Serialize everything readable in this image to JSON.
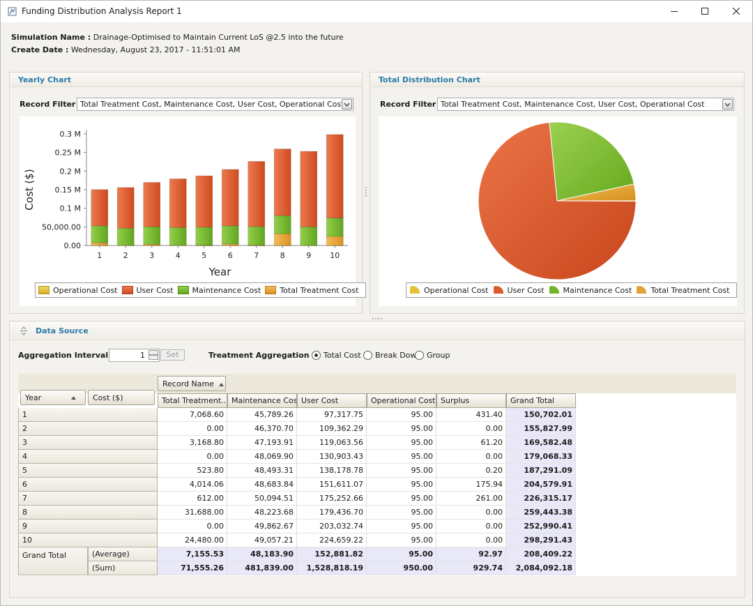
{
  "window": {
    "title": "Funding Distribution Analysis Report 1",
    "minimize_icon": "minimize-icon",
    "maximize_icon": "maximize-icon",
    "close_icon": "close-icon"
  },
  "meta": {
    "simulation_label": "Simulation Name :",
    "simulation_value": "Drainage-Optimised to Maintain Current LoS @2.5 into the future",
    "date_label": "Create Date :",
    "date_value": "Wednesday, August 23, 2017 - 11:51:01 AM"
  },
  "yearly_panel": {
    "title": "Yearly Chart",
    "filter_label": "Record Filter :",
    "filter_value": "Total Treatment Cost, Maintenance Cost, User Cost, Operational Cost"
  },
  "total_panel": {
    "title": "Total Distribution Chart",
    "filter_label": "Record Filter :",
    "filter_value": "Total Treatment Cost, Maintenance Cost, User Cost, Operational Cost"
  },
  "colors": {
    "operational": "#e3c23a",
    "user": "#dc5a2e",
    "maintenance": "#72b52a",
    "treatment": "#e3a23a"
  },
  "chart_data": [
    {
      "type": "bar",
      "stacked": true,
      "categories": [
        "1",
        "2",
        "3",
        "4",
        "5",
        "6",
        "7",
        "8",
        "9",
        "10"
      ],
      "series": [
        {
          "name": "Total Treatment Cost",
          "values": [
            7068.6,
            0.0,
            3168.8,
            0.0,
            523.8,
            4014.06,
            612.0,
            31688.0,
            0.0,
            24480.0
          ]
        },
        {
          "name": "Maintenance Cost",
          "values": [
            45789.26,
            46370.7,
            47193.91,
            48069.9,
            48493.31,
            48683.84,
            50094.51,
            48223.68,
            49862.67,
            49057.21
          ]
        },
        {
          "name": "User Cost",
          "values": [
            97317.75,
            109362.29,
            119063.56,
            130903.43,
            138178.78,
            151611.07,
            175252.66,
            179436.7,
            203032.74,
            224659.22
          ]
        },
        {
          "name": "Operational Cost",
          "values": [
            95.0,
            95.0,
            95.0,
            95.0,
            95.0,
            95.0,
            95.0,
            95.0,
            95.0,
            95.0
          ]
        }
      ],
      "xlabel": "Year",
      "ylabel": "Cost ($)",
      "ylim": [
        0,
        300000
      ],
      "yticks": [
        "0.00",
        "50,000.00",
        "0.1 M",
        "0.15 M",
        "0.2 M",
        "0.25 M",
        "0.3 M"
      ],
      "legend": [
        "Operational Cost",
        "User Cost",
        "Maintenance Cost",
        "Total Treatment Cost"
      ],
      "legend_position": "bottom"
    },
    {
      "type": "pie",
      "labels": [
        "Total Treatment Cost",
        "Maintenance Cost",
        "User Cost",
        "Operational Cost"
      ],
      "values": [
        71555.26,
        481839.0,
        1528818.19,
        950.0
      ],
      "legend": [
        "Operational Cost",
        "User Cost",
        "Maintenance Cost",
        "Total Treatment Cost"
      ],
      "legend_position": "bottom"
    }
  ],
  "data_source": {
    "title": "Data Source",
    "aggregation_label": "Aggregation Interval :",
    "aggregation_value": "1",
    "set_label": "Set",
    "treatment_label": "Treatment Aggregation :",
    "radio_total": "Total Cost",
    "radio_breakdown": "Break Down",
    "radio_group": "Group",
    "header_year": "Year",
    "header_cost": "Cost ($)",
    "header_record": "Record Name",
    "columns": [
      "Total Treatment...",
      "Maintenance Cost",
      "User Cost",
      "Operational Cost",
      "Surplus",
      "Grand Total"
    ],
    "rows": [
      {
        "year": "1",
        "vals": [
          "7,068.60",
          "45,789.26",
          "97,317.75",
          "95.00",
          "431.40",
          "150,702.01"
        ]
      },
      {
        "year": "2",
        "vals": [
          "0.00",
          "46,370.70",
          "109,362.29",
          "95.00",
          "0.00",
          "155,827.99"
        ]
      },
      {
        "year": "3",
        "vals": [
          "3,168.80",
          "47,193.91",
          "119,063.56",
          "95.00",
          "61.20",
          "169,582.48"
        ]
      },
      {
        "year": "4",
        "vals": [
          "0.00",
          "48,069.90",
          "130,903.43",
          "95.00",
          "0.00",
          "179,068.33"
        ]
      },
      {
        "year": "5",
        "vals": [
          "523.80",
          "48,493.31",
          "138,178.78",
          "95.00",
          "0.20",
          "187,291.09"
        ]
      },
      {
        "year": "6",
        "vals": [
          "4,014.06",
          "48,683.84",
          "151,611.07",
          "95.00",
          "175.94",
          "204,579.91"
        ]
      },
      {
        "year": "7",
        "vals": [
          "612.00",
          "50,094.51",
          "175,252.66",
          "95.00",
          "261.00",
          "226,315.17"
        ]
      },
      {
        "year": "8",
        "vals": [
          "31,688.00",
          "48,223.68",
          "179,436.70",
          "95.00",
          "0.00",
          "259,443.38"
        ]
      },
      {
        "year": "9",
        "vals": [
          "0.00",
          "49,862.67",
          "203,032.74",
          "95.00",
          "0.00",
          "252,990.41"
        ]
      },
      {
        "year": "10",
        "vals": [
          "24,480.00",
          "49,057.21",
          "224,659.22",
          "95.00",
          "0.00",
          "298,291.43"
        ]
      }
    ],
    "grand_total_label": "Grand Total",
    "avg_label": "(Average)",
    "sum_label": "(Sum)",
    "avg_vals": [
      "7,155.53",
      "48,183.90",
      "152,881.82",
      "95.00",
      "92.97",
      "208,409.22"
    ],
    "sum_vals": [
      "71,555.26",
      "481,839.00",
      "1,528,818.19",
      "950.00",
      "929.74",
      "2,084,092.18"
    ]
  }
}
